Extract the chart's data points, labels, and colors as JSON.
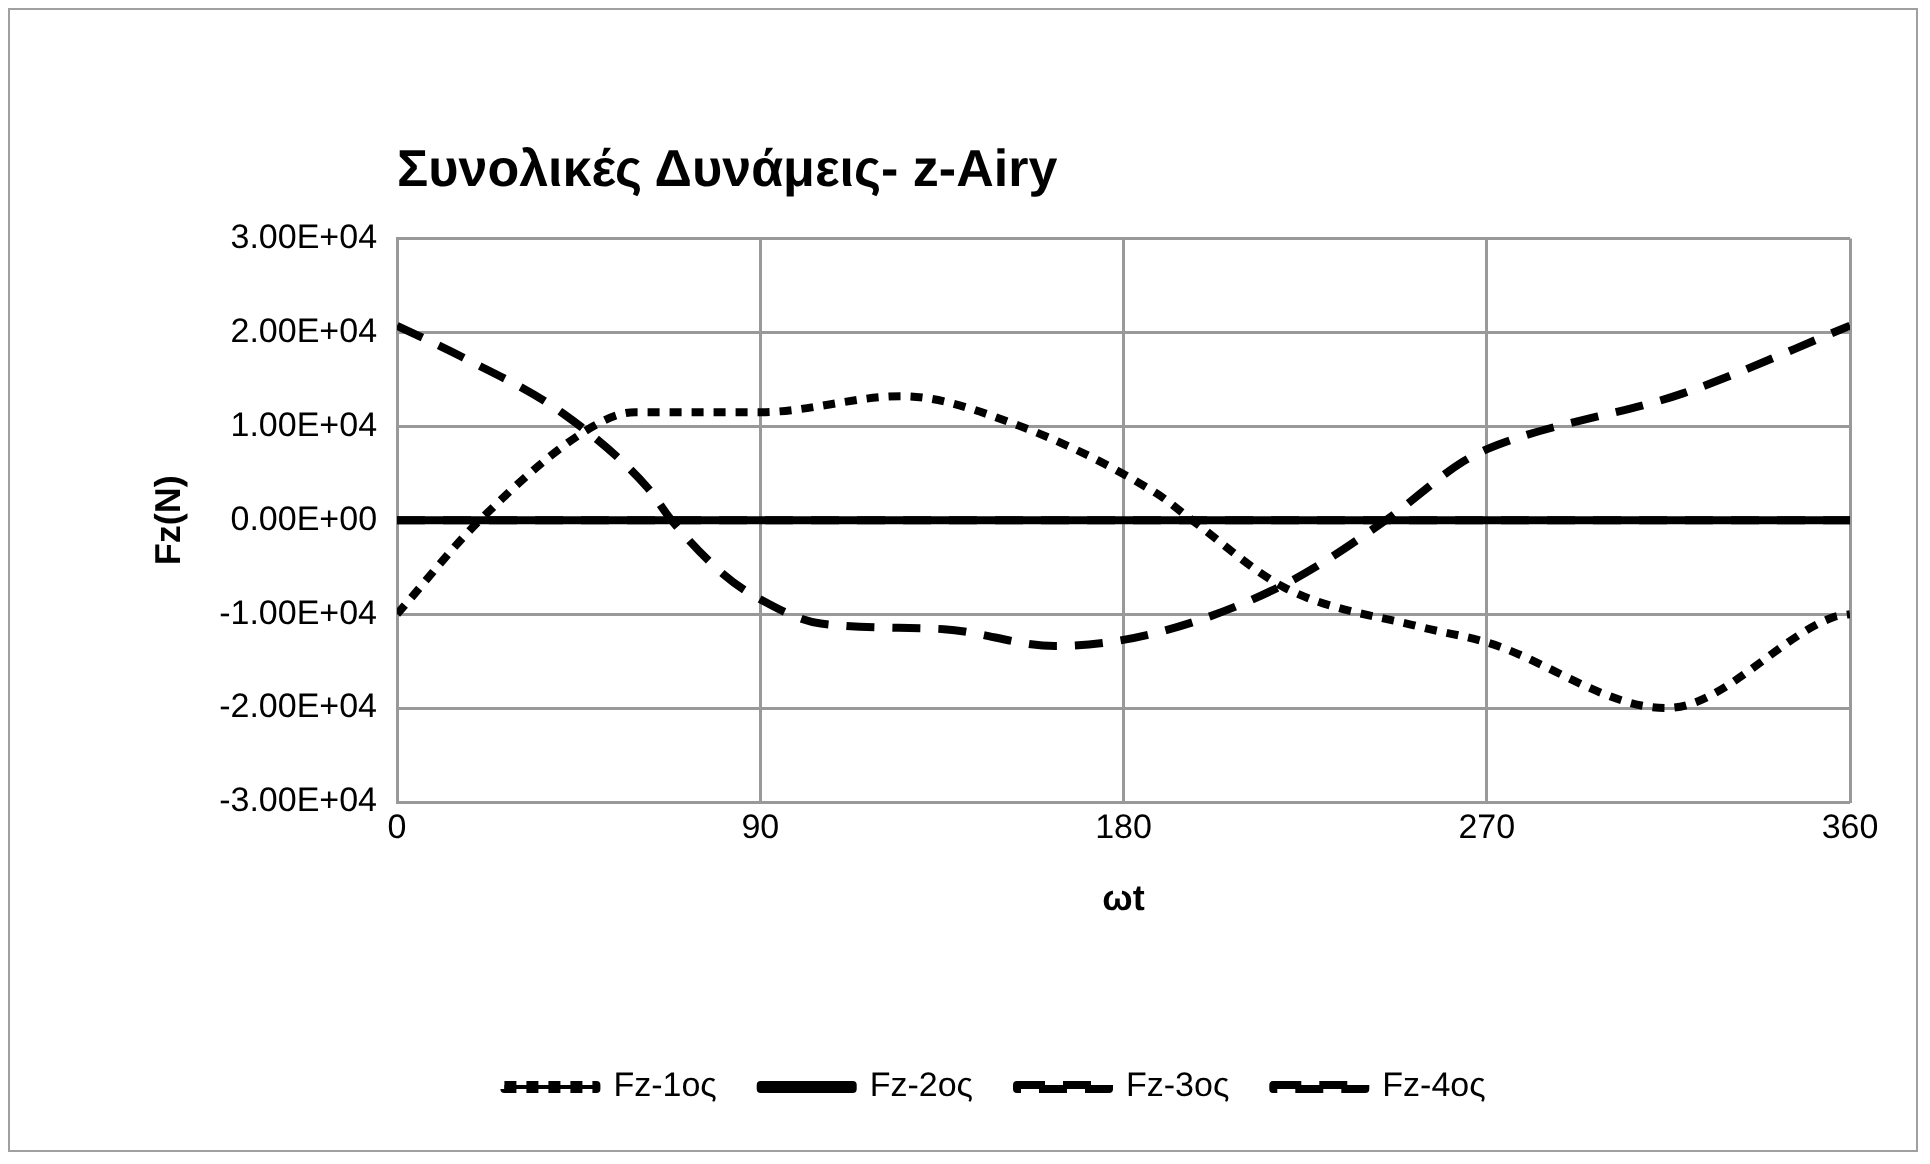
{
  "chart_data": {
    "type": "line",
    "title": "Συνολικές Δυνάμεις- z-Airy",
    "xlabel": "ωt",
    "ylabel": "Fz(N)",
    "xlim": [
      0,
      360
    ],
    "xticks": [
      0,
      90,
      180,
      270,
      360
    ],
    "ylim": [
      -30000,
      30000
    ],
    "yticks": [
      {
        "value": -30000,
        "label": "-3.00E+04"
      },
      {
        "value": -20000,
        "label": "-2.00E+04"
      },
      {
        "value": -10000,
        "label": "-1.00E+04"
      },
      {
        "value": 0,
        "label": "0.00E+00"
      },
      {
        "value": 10000,
        "label": "1.00E+04"
      },
      {
        "value": 20000,
        "label": "2.00E+04"
      },
      {
        "value": 30000,
        "label": "3.00E+04"
      }
    ],
    "grid": true,
    "legend": "bottom",
    "marker": "none",
    "series": [
      {
        "name": "Fz-1ος",
        "color": "#000000",
        "line_style": "dotted",
        "x": [
          0,
          20.5,
          48.6,
          59,
          90,
          125,
          152,
          188,
          197,
          220,
          254,
          270,
          314.5,
          356,
          360
        ],
        "values": [
          -10000,
          0,
          10000,
          11500,
          11500,
          13200,
          10400,
          2900,
          0,
          -7200,
          -11400,
          -13000,
          -20000,
          -10300,
          -10000
        ]
      },
      {
        "name": "Fz-2ος",
        "color": "#000000",
        "line_style": "solid",
        "x": [
          0,
          360
        ],
        "values": [
          0,
          0
        ]
      },
      {
        "name": "Fz-3ος",
        "color": "#000000",
        "line_style": "dashed",
        "x": [
          0,
          360
        ],
        "values": [
          0,
          0
        ]
      },
      {
        "name": "Fz-4ος",
        "color": "#000000",
        "line_style": "dashed",
        "x": [
          0,
          16,
          41,
          62,
          68,
          81,
          89.5,
          105,
          135.5,
          163,
          188,
          220,
          245,
          264,
          272.6,
          318.6,
          360
        ],
        "values": [
          20700,
          17400,
          11400,
          3500,
          0,
          -5800,
          -8300,
          -11000,
          -11600,
          -13400,
          -12000,
          -6800,
          0,
          6200,
          8000,
          13500,
          20700
        ]
      }
    ]
  }
}
